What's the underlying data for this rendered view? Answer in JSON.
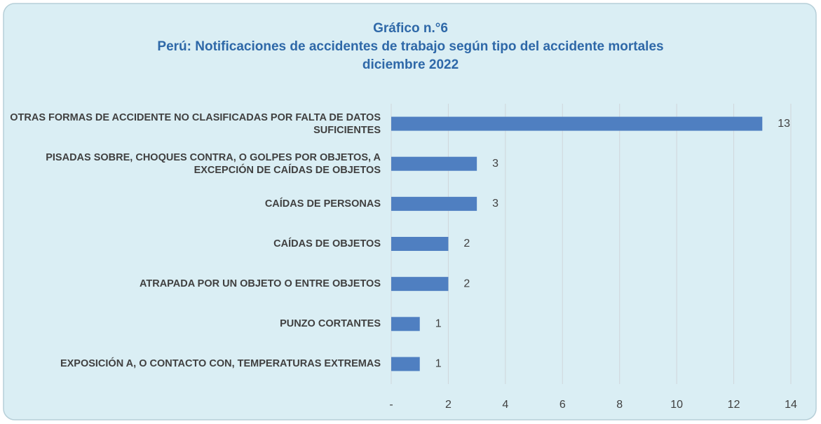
{
  "chart_data": {
    "type": "bar",
    "orientation": "horizontal",
    "title_lines": [
      "Gráfico n.°6",
      "Perú: Notificaciones de accidentes de trabajo según tipo del accidente mortales",
      "diciembre 2022"
    ],
    "categories": [
      "OTRAS FORMAS DE ACCIDENTE NO CLASIFICADAS POR FALTA DE DATOS SUFICIENTES",
      "PISADAS SOBRE, CHOQUES CONTRA, O GOLPES POR OBJETOS, A EXCEPCIÓN DE CAÍDAS DE OBJETOS",
      "CAÍDAS DE PERSONAS",
      "CAÍDAS DE OBJETOS",
      "ATRAPADA POR UN OBJETO O ENTRE OBJETOS",
      "PUNZO CORTANTES",
      "EXPOSICIÓN A, O CONTACTO CON, TEMPERATURAS EXTREMAS"
    ],
    "values": [
      13,
      3,
      3,
      2,
      2,
      1,
      1
    ],
    "color": "#4f7fc1",
    "xlim": [
      0,
      14
    ],
    "xticks": [
      {
        "value": 0,
        "label": "-"
      },
      2,
      4,
      6,
      8,
      10,
      12,
      14
    ],
    "grid": true
  }
}
